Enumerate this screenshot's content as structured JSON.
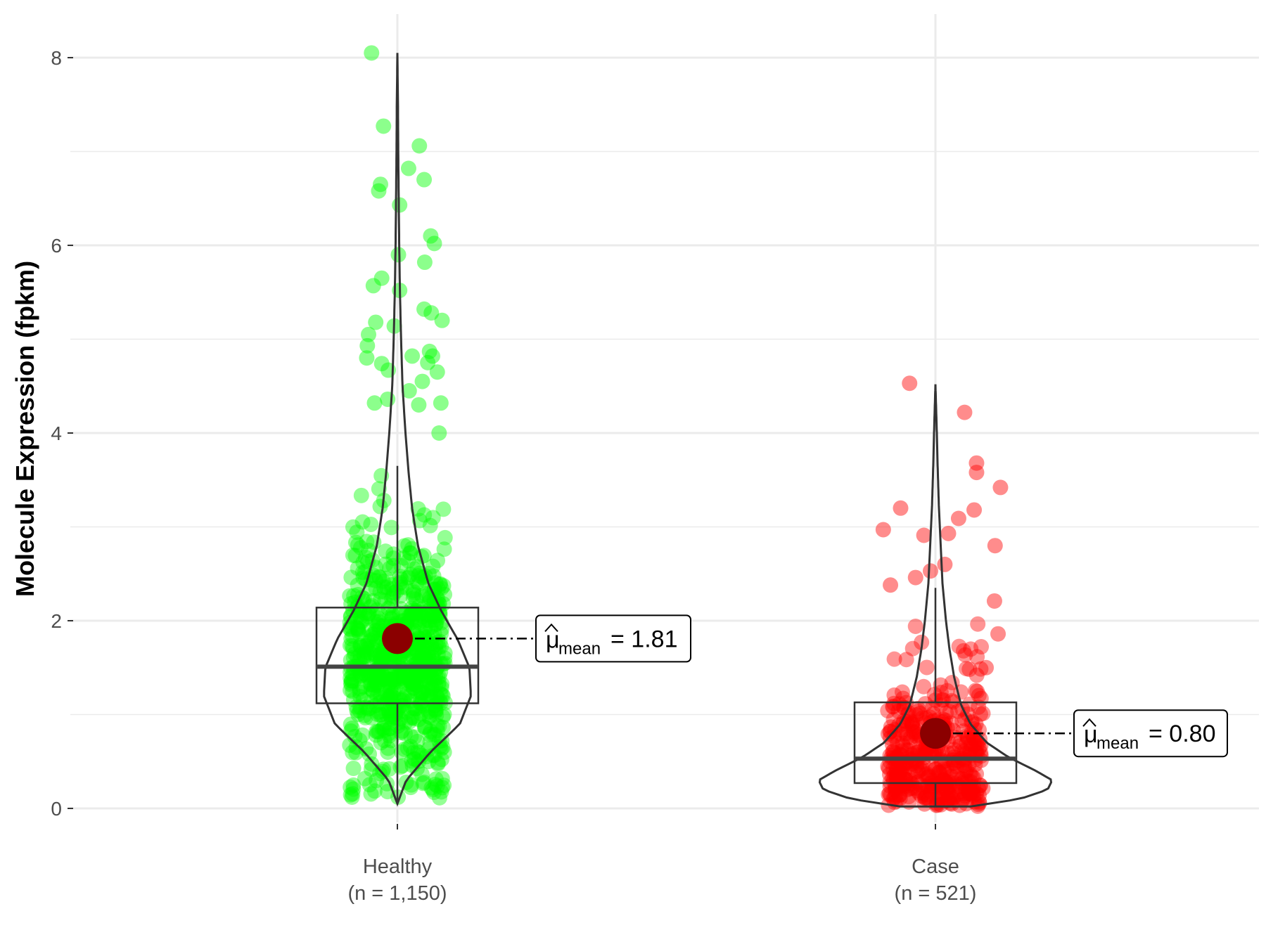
{
  "chart_data": {
    "type": "violin",
    "ylabel": "Molecule Expression (fpkm)",
    "ylim": [
      -0.2,
      8.5
    ],
    "yticks": [
      0,
      2,
      4,
      6,
      8
    ],
    "grid": true,
    "groups": [
      {
        "name": "Healthy",
        "n_label": "(n = 1,150)",
        "color": "#00ff00",
        "mean": 1.81,
        "mean_label": "1.81",
        "box": {
          "lower_whisker": 0.05,
          "q1": 1.12,
          "median": 1.51,
          "q3": 2.14,
          "upper_whisker": 3.65
        },
        "max": 8.05,
        "violin_profile": [
          [
            0.05,
            0.0
          ],
          [
            0.3,
            0.12
          ],
          [
            0.6,
            0.45
          ],
          [
            0.9,
            0.85
          ],
          [
            1.2,
            1.0
          ],
          [
            1.5,
            0.98
          ],
          [
            1.8,
            0.82
          ],
          [
            2.1,
            0.6
          ],
          [
            2.4,
            0.42
          ],
          [
            2.8,
            0.28
          ],
          [
            3.2,
            0.2
          ],
          [
            3.6,
            0.15
          ],
          [
            4.0,
            0.11
          ],
          [
            4.5,
            0.07
          ],
          [
            5.0,
            0.05
          ],
          [
            5.5,
            0.035
          ],
          [
            6.0,
            0.025
          ],
          [
            6.5,
            0.018
          ],
          [
            7.0,
            0.012
          ],
          [
            7.5,
            0.008
          ],
          [
            8.05,
            0.0
          ]
        ],
        "outliers": [
          [
            -0.55,
            8.05
          ],
          [
            -0.35,
            7.27
          ],
          [
            -0.4,
            6.65
          ],
          [
            -0.43,
            6.58
          ],
          [
            -0.08,
            6.43
          ],
          [
            0.25,
            7.06
          ],
          [
            0.33,
            6.7
          ],
          [
            0.07,
            6.82
          ],
          [
            0.44,
            6.1
          ],
          [
            0.5,
            6.02
          ],
          [
            0.34,
            5.82
          ],
          [
            -0.38,
            5.65
          ],
          [
            -0.52,
            5.57
          ],
          [
            -0.1,
            5.9
          ],
          [
            -0.08,
            5.52
          ],
          [
            0.33,
            5.32
          ],
          [
            0.45,
            5.28
          ],
          [
            0.63,
            5.2
          ],
          [
            -0.48,
            5.18
          ],
          [
            -0.17,
            5.14
          ],
          [
            -0.6,
            5.05
          ],
          [
            -0.62,
            4.93
          ],
          [
            0.42,
            4.87
          ],
          [
            0.47,
            4.82
          ],
          [
            0.13,
            4.82
          ],
          [
            0.39,
            4.75
          ],
          [
            -0.63,
            4.8
          ],
          [
            -0.38,
            4.74
          ],
          [
            -0.27,
            4.67
          ],
          [
            0.61,
            4.32
          ],
          [
            0.55,
            4.65
          ],
          [
            0.3,
            4.55
          ],
          [
            0.08,
            4.45
          ],
          [
            -0.28,
            4.36
          ],
          [
            -0.5,
            4.32
          ],
          [
            0.24,
            4.3
          ],
          [
            0.58,
            4.0
          ]
        ]
      },
      {
        "name": "Case",
        "n_label": "(n = 521)",
        "color": "#ff0000",
        "mean": 0.8,
        "mean_label": "0.80",
        "box": {
          "lower_whisker": 0.02,
          "q1": 0.27,
          "median": 0.53,
          "q3": 1.13,
          "upper_whisker": 2.35
        },
        "max": 4.52,
        "violin_profile": [
          [
            0.02,
            0.3
          ],
          [
            0.1,
            0.72
          ],
          [
            0.2,
            0.96
          ],
          [
            0.3,
            1.0
          ],
          [
            0.4,
            0.86
          ],
          [
            0.55,
            0.62
          ],
          [
            0.7,
            0.44
          ],
          [
            0.9,
            0.3
          ],
          [
            1.1,
            0.22
          ],
          [
            1.4,
            0.16
          ],
          [
            1.7,
            0.12
          ],
          [
            2.0,
            0.09
          ],
          [
            2.4,
            0.06
          ],
          [
            2.8,
            0.045
          ],
          [
            3.2,
            0.03
          ],
          [
            3.6,
            0.02
          ],
          [
            4.0,
            0.012
          ],
          [
            4.52,
            0.0
          ]
        ],
        "outliers": [
          [
            -0.55,
            4.53
          ],
          [
            0.37,
            4.22
          ],
          [
            0.57,
            3.68
          ],
          [
            0.57,
            3.58
          ],
          [
            0.97,
            3.42
          ],
          [
            0.53,
            3.18
          ],
          [
            -0.7,
            3.2
          ],
          [
            -0.99,
            2.97
          ],
          [
            0.27,
            3.09
          ],
          [
            -0.31,
            2.91
          ],
          [
            0.1,
            2.93
          ],
          [
            0.88,
            2.8
          ],
          [
            0.04,
            2.6
          ],
          [
            -0.2,
            2.53
          ],
          [
            -0.45,
            2.46
          ],
          [
            -0.87,
            2.38
          ],
          [
            0.87,
            2.21
          ],
          [
            0.93,
            1.86
          ],
          [
            0.73,
            1.5
          ]
        ]
      }
    ]
  }
}
